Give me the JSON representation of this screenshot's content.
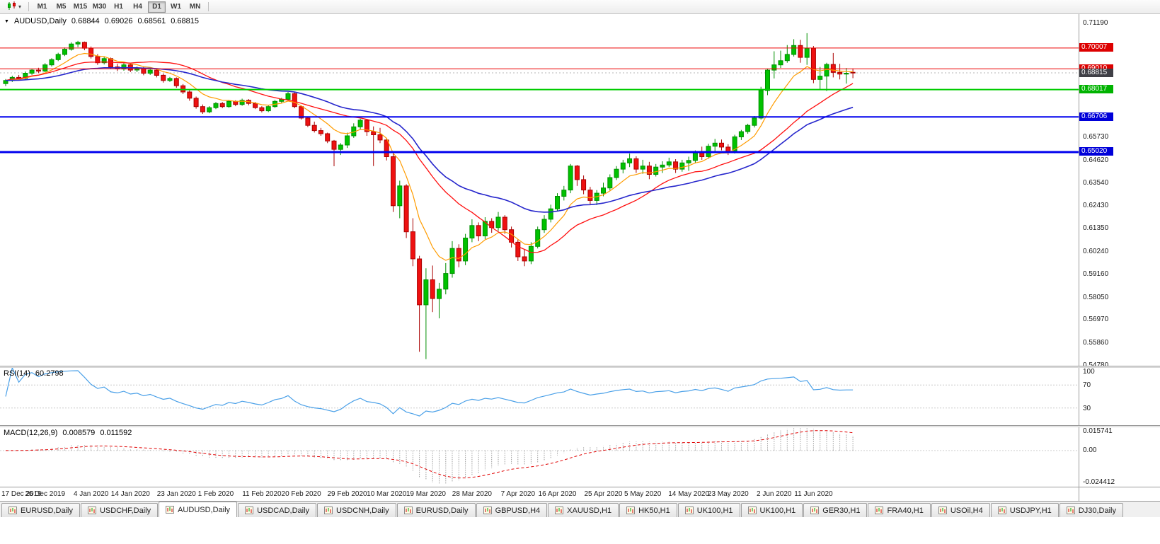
{
  "toolbar": {
    "timeframes": [
      "M1",
      "M5",
      "M15",
      "M30",
      "H1",
      "H4",
      "D1",
      "W1",
      "MN"
    ],
    "active_timeframe": "D1"
  },
  "chart_header": {
    "symbol_period": "AUDUSD,Daily",
    "open": "0.68844",
    "high": "0.69026",
    "low": "0.68561",
    "close": "0.68815"
  },
  "price_scale": {
    "plain_labels": [
      "0.71190",
      "0.65730",
      "0.64620",
      "0.63540",
      "0.62430",
      "0.61350",
      "0.60240",
      "0.59160",
      "0.58050",
      "0.56970",
      "0.55860",
      "0.54780"
    ],
    "tags": [
      {
        "text": "0.70007",
        "bg": "#dd0000"
      },
      {
        "text": "0.69010",
        "bg": "#dd0000"
      },
      {
        "text": "0.68815",
        "bg": "#3f3f46"
      },
      {
        "text": "0.68017",
        "bg": "#00b300"
      },
      {
        "text": "0.66706",
        "bg": "#0000d9"
      },
      {
        "text": "0.65020",
        "bg": "#0000d9"
      }
    ]
  },
  "rsi_panel": {
    "label": "RSI(14)",
    "value": "60.2798",
    "line_color": "#4aa0e8",
    "level_lines": [
      70,
      30
    ],
    "scale_labels": [
      {
        "text": "100",
        "value": 100
      },
      {
        "text": "70",
        "value": 70
      },
      {
        "text": "30",
        "value": 30
      }
    ]
  },
  "macd_panel": {
    "label": "MACD(12,26,9)",
    "main_value": "0.008579",
    "signal_value": "0.011592",
    "histogram_color": "#9d9d9d",
    "signal_color": "#e00000",
    "scale_labels": [
      {
        "text": "0.015741",
        "value": 0.015741
      },
      {
        "text": "0.00",
        "value": 0
      },
      {
        "text": "-0.024412",
        "value": -0.024412
      }
    ]
  },
  "tab_bar": {
    "tabs": [
      "EURUSD,Daily",
      "USDCHF,Daily",
      "AUDUSD,Daily",
      "USDCAD,Daily",
      "USDCNH,Daily",
      "EURUSD,Daily",
      "GBPUSD,H4",
      "XAUUSD,H1",
      "HK50,H1",
      "UK100,H1",
      "UK100,H1",
      "GER30,H1",
      "FRA40,H1",
      "USOil,H4",
      "USDJPY,H1",
      "DJ30,Daily"
    ],
    "active_index": 2
  },
  "chart_data": {
    "type": "candlestick",
    "symbol": "AUDUSD",
    "period": "Daily",
    "ohlc_current": {
      "open": 0.68844,
      "high": 0.69026,
      "low": 0.68561,
      "close": 0.68815
    },
    "y_axis": {
      "min": 0.5478,
      "max": 0.7119
    },
    "current_price": 0.68815,
    "colors": {
      "up": "#00c200",
      "up_border": "#008f00",
      "down": "#ee1111",
      "down_border": "#aa0000",
      "background": "#ffffff",
      "current_price_line": "#b4b4b4"
    },
    "horizontal_lines": [
      {
        "price": 0.70007,
        "color": "#ee0000",
        "width": 1
      },
      {
        "price": 0.6901,
        "color": "#ee0000",
        "width": 1
      },
      {
        "price": 0.68017,
        "color": "#00cc00",
        "width": 2
      },
      {
        "price": 0.66706,
        "color": "#0000ee",
        "width": 2
      },
      {
        "price": 0.6502,
        "color": "#0000ee",
        "width": 3
      }
    ],
    "moving_averages": [
      {
        "method": "ema",
        "period": 8,
        "color": "#ff9c00",
        "width": 1.2
      },
      {
        "method": "sma",
        "period": 20,
        "color": "#ff1010",
        "width": 1.3
      },
      {
        "method": "ema",
        "period": 34,
        "color": "#2626cc",
        "width": 1.6
      }
    ],
    "rsi": {
      "period": 14,
      "current": 60.2798
    },
    "macd": {
      "fast": 12,
      "slow": 26,
      "signal": 9,
      "current_main": 0.008579,
      "current_signal": 0.011592,
      "scale_max": 0.015741,
      "scale_min": -0.024412
    },
    "x_axis_labels": [
      [
        "17 Dec 2019",
        0
      ],
      [
        "26 Dec 2019",
        6
      ],
      [
        "4 Jan 2020",
        13
      ],
      [
        "14 Jan 2020",
        19
      ],
      [
        "23 Jan 2020",
        26
      ],
      [
        "1 Feb 2020",
        32
      ],
      [
        "11 Feb 2020",
        39
      ],
      [
        "20 Feb 2020",
        45
      ],
      [
        "29 Feb 2020",
        52
      ],
      [
        "10 Mar 2020",
        58
      ],
      [
        "19 Mar 2020",
        64
      ],
      [
        "28 Mar 2020",
        71
      ],
      [
        "7 Apr 2020",
        78
      ],
      [
        "16 Apr 2020",
        84
      ],
      [
        "25 Apr 2020",
        91
      ],
      [
        "5 May 2020",
        97
      ],
      [
        "14 May 2020",
        104
      ],
      [
        "23 May 2020",
        110
      ],
      [
        "2 Jun 2020",
        117
      ],
      [
        "11 Jun 2020",
        123
      ]
    ],
    "candles": [
      [
        0.683,
        0.6852,
        0.6818,
        0.6845
      ],
      [
        0.6845,
        0.6868,
        0.6838,
        0.686
      ],
      [
        0.686,
        0.6872,
        0.6845,
        0.6855
      ],
      [
        0.6855,
        0.6888,
        0.685,
        0.688
      ],
      [
        0.688,
        0.6902,
        0.6872,
        0.6895
      ],
      [
        0.6895,
        0.6906,
        0.688,
        0.689
      ],
      [
        0.689,
        0.6928,
        0.6885,
        0.692
      ],
      [
        0.692,
        0.6952,
        0.6912,
        0.6945
      ],
      [
        0.6945,
        0.6978,
        0.6938,
        0.697
      ],
      [
        0.697,
        0.7003,
        0.6962,
        0.6995
      ],
      [
        0.6995,
        0.7028,
        0.6988,
        0.702
      ],
      [
        0.702,
        0.7035,
        0.7005,
        0.7028
      ],
      [
        0.7028,
        0.7032,
        0.699,
        0.7
      ],
      [
        0.7,
        0.7008,
        0.695,
        0.696
      ],
      [
        0.696,
        0.6972,
        0.692,
        0.693
      ],
      [
        0.693,
        0.6958,
        0.6922,
        0.695
      ],
      [
        0.695,
        0.6955,
        0.69,
        0.691
      ],
      [
        0.691,
        0.6925,
        0.689,
        0.69
      ],
      [
        0.69,
        0.6928,
        0.6892,
        0.692
      ],
      [
        0.692,
        0.6926,
        0.6885,
        0.6895
      ],
      [
        0.6895,
        0.6912,
        0.6885,
        0.6905
      ],
      [
        0.6905,
        0.691,
        0.687,
        0.688
      ],
      [
        0.688,
        0.69,
        0.6872,
        0.6895
      ],
      [
        0.6895,
        0.69,
        0.686,
        0.687
      ],
      [
        0.687,
        0.6878,
        0.6835,
        0.6845
      ],
      [
        0.6845,
        0.6862,
        0.6838,
        0.6855
      ],
      [
        0.6855,
        0.686,
        0.681,
        0.682
      ],
      [
        0.682,
        0.6828,
        0.678,
        0.679
      ],
      [
        0.679,
        0.6798,
        0.6748,
        0.676
      ],
      [
        0.676,
        0.6768,
        0.671,
        0.672
      ],
      [
        0.672,
        0.673,
        0.6685,
        0.6695
      ],
      [
        0.6695,
        0.6722,
        0.6688,
        0.6715
      ],
      [
        0.6715,
        0.6742,
        0.6708,
        0.6735
      ],
      [
        0.6735,
        0.6742,
        0.6712,
        0.672
      ],
      [
        0.672,
        0.6752,
        0.6714,
        0.6745
      ],
      [
        0.6745,
        0.675,
        0.6722,
        0.673
      ],
      [
        0.673,
        0.6758,
        0.6724,
        0.675
      ],
      [
        0.675,
        0.6756,
        0.6726,
        0.6735
      ],
      [
        0.6735,
        0.6742,
        0.6708,
        0.6715
      ],
      [
        0.6715,
        0.6722,
        0.6692,
        0.67
      ],
      [
        0.67,
        0.6728,
        0.6694,
        0.672
      ],
      [
        0.672,
        0.6752,
        0.6714,
        0.6745
      ],
      [
        0.6745,
        0.6762,
        0.6738,
        0.6755
      ],
      [
        0.6755,
        0.679,
        0.6748,
        0.6782
      ],
      [
        0.6782,
        0.6788,
        0.6712,
        0.672
      ],
      [
        0.672,
        0.6726,
        0.6658,
        0.6665
      ],
      [
        0.6665,
        0.6672,
        0.6622,
        0.663
      ],
      [
        0.663,
        0.6648,
        0.6596,
        0.6605
      ],
      [
        0.6605,
        0.6618,
        0.658,
        0.659
      ],
      [
        0.659,
        0.6595,
        0.6545,
        0.6555
      ],
      [
        0.6555,
        0.656,
        0.6434,
        0.6515
      ],
      [
        0.6515,
        0.6545,
        0.6488,
        0.6536
      ],
      [
        0.6536,
        0.6595,
        0.6522,
        0.658
      ],
      [
        0.658,
        0.664,
        0.657,
        0.6623
      ],
      [
        0.6623,
        0.6662,
        0.6612,
        0.6655
      ],
      [
        0.6655,
        0.666,
        0.658,
        0.66
      ],
      [
        0.66,
        0.6625,
        0.6435,
        0.6585
      ],
      [
        0.6585,
        0.6618,
        0.6545,
        0.656
      ],
      [
        0.656,
        0.6568,
        0.6462,
        0.648
      ],
      [
        0.648,
        0.6495,
        0.6215,
        0.6245
      ],
      [
        0.6245,
        0.6365,
        0.6185,
        0.634
      ],
      [
        0.634,
        0.6348,
        0.609,
        0.612
      ],
      [
        0.612,
        0.6185,
        0.5955,
        0.599
      ],
      [
        0.599,
        0.6005,
        0.5545,
        0.577
      ],
      [
        0.577,
        0.5945,
        0.551,
        0.589
      ],
      [
        0.589,
        0.5958,
        0.5735,
        0.58
      ],
      [
        0.58,
        0.5875,
        0.5705,
        0.5845
      ],
      [
        0.5845,
        0.597,
        0.582,
        0.592
      ],
      [
        0.592,
        0.6075,
        0.59,
        0.604
      ],
      [
        0.604,
        0.606,
        0.595,
        0.598
      ],
      [
        0.598,
        0.611,
        0.596,
        0.609
      ],
      [
        0.609,
        0.618,
        0.607,
        0.615
      ],
      [
        0.615,
        0.6165,
        0.6075,
        0.61
      ],
      [
        0.61,
        0.619,
        0.6085,
        0.617
      ],
      [
        0.617,
        0.6185,
        0.6115,
        0.614
      ],
      [
        0.614,
        0.6215,
        0.6125,
        0.619
      ],
      [
        0.619,
        0.62,
        0.611,
        0.613
      ],
      [
        0.613,
        0.6145,
        0.6045,
        0.607
      ],
      [
        0.607,
        0.6085,
        0.598,
        0.6
      ],
      [
        0.6,
        0.6035,
        0.5955,
        0.598
      ],
      [
        0.598,
        0.607,
        0.5965,
        0.605
      ],
      [
        0.605,
        0.6145,
        0.604,
        0.613
      ],
      [
        0.613,
        0.62,
        0.6115,
        0.618
      ],
      [
        0.618,
        0.625,
        0.6165,
        0.623
      ],
      [
        0.623,
        0.6305,
        0.6218,
        0.629
      ],
      [
        0.629,
        0.634,
        0.627,
        0.632
      ],
      [
        0.632,
        0.6445,
        0.6305,
        0.6435
      ],
      [
        0.6435,
        0.644,
        0.634,
        0.637
      ],
      [
        0.637,
        0.639,
        0.63,
        0.632
      ],
      [
        0.632,
        0.6335,
        0.6253,
        0.627
      ],
      [
        0.627,
        0.632,
        0.6248,
        0.6305
      ],
      [
        0.6305,
        0.6355,
        0.629,
        0.633
      ],
      [
        0.633,
        0.6395,
        0.6318,
        0.638
      ],
      [
        0.638,
        0.6435,
        0.6368,
        0.642
      ],
      [
        0.642,
        0.6465,
        0.64,
        0.645
      ],
      [
        0.645,
        0.6495,
        0.643,
        0.647
      ],
      [
        0.647,
        0.6482,
        0.6402,
        0.642
      ],
      [
        0.642,
        0.6465,
        0.6398,
        0.6435
      ],
      [
        0.6435,
        0.6455,
        0.6372,
        0.6395
      ],
      [
        0.6395,
        0.6445,
        0.6385,
        0.643
      ],
      [
        0.643,
        0.6458,
        0.6402,
        0.644
      ],
      [
        0.644,
        0.6475,
        0.643,
        0.6455
      ],
      [
        0.6455,
        0.6468,
        0.6402,
        0.642
      ],
      [
        0.642,
        0.6465,
        0.6408,
        0.645
      ],
      [
        0.645,
        0.648,
        0.6412,
        0.6462
      ],
      [
        0.6462,
        0.651,
        0.6448,
        0.6498
      ],
      [
        0.6498,
        0.6528,
        0.6465,
        0.648
      ],
      [
        0.648,
        0.6542,
        0.647,
        0.653
      ],
      [
        0.653,
        0.6565,
        0.6505,
        0.6545
      ],
      [
        0.6545,
        0.6562,
        0.651,
        0.6526
      ],
      [
        0.6526,
        0.654,
        0.6488,
        0.65
      ],
      [
        0.65,
        0.6585,
        0.6495,
        0.6575
      ],
      [
        0.6575,
        0.6608,
        0.656,
        0.66
      ],
      [
        0.66,
        0.6638,
        0.659,
        0.663
      ],
      [
        0.663,
        0.6675,
        0.662,
        0.6665
      ],
      [
        0.6665,
        0.6815,
        0.6658,
        0.6797
      ],
      [
        0.6797,
        0.6902,
        0.6775,
        0.6895
      ],
      [
        0.6895,
        0.6985,
        0.6855,
        0.692
      ],
      [
        0.692,
        0.6988,
        0.6905,
        0.694
      ],
      [
        0.694,
        0.7015,
        0.693,
        0.697
      ],
      [
        0.697,
        0.7043,
        0.696,
        0.7013
      ],
      [
        0.7013,
        0.704,
        0.693,
        0.6956
      ],
      [
        0.6956,
        0.7072,
        0.692,
        0.7
      ],
      [
        0.7,
        0.701,
        0.6832,
        0.685
      ],
      [
        0.685,
        0.691,
        0.6799,
        0.6866
      ],
      [
        0.6866,
        0.693,
        0.6795,
        0.6922
      ],
      [
        0.6922,
        0.6977,
        0.686,
        0.6884
      ],
      [
        0.6884,
        0.6925,
        0.685,
        0.6876
      ],
      [
        0.6876,
        0.6905,
        0.683,
        0.688
      ],
      [
        0.68844,
        0.69026,
        0.68561,
        0.68815
      ]
    ]
  }
}
